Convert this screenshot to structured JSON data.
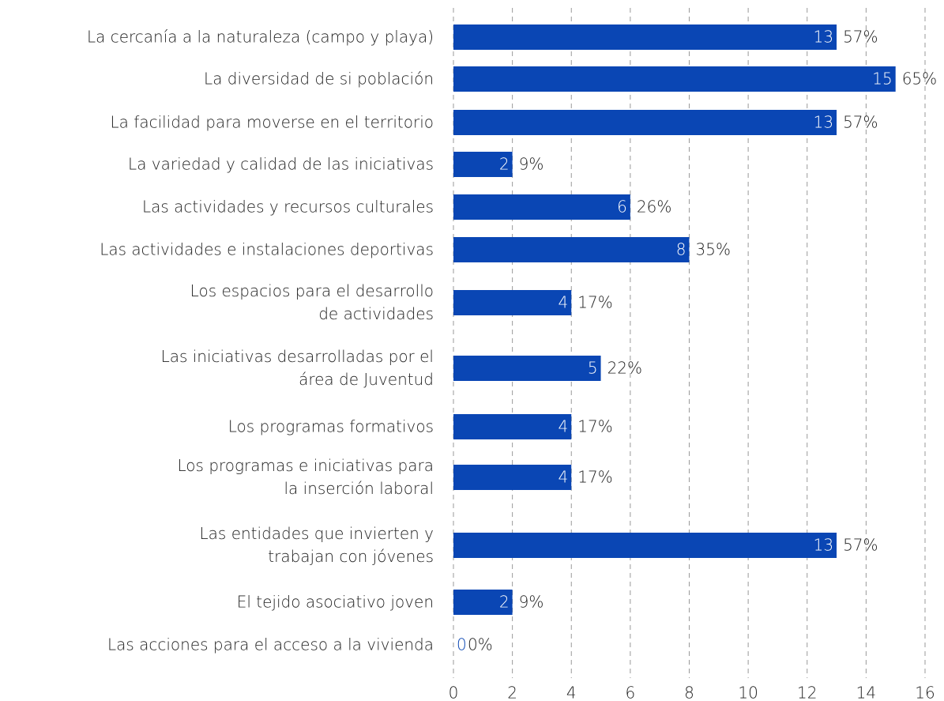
{
  "chart_data": {
    "type": "bar",
    "orientation": "horizontal",
    "color": "#0a46b4",
    "categories": [
      "La cercanía a la naturaleza (campo y playa)",
      "La diversidad de si población",
      "La facilidad para moverse en el territorio",
      "La variedad y calidad de las iniciativas",
      "Las actividades y recursos culturales",
      "Las actividades e instalaciones deportivas",
      "Los espacios para el desarrollo\nde actividades",
      "Las iniciativas desarrolladas por el\nárea de Juventud",
      "Los programas formativos",
      "Los programas e iniciativas para\nla inserción laboral",
      "Las entidades que invierten y\ntrabajan con jóvenes",
      "El tejido asociativo joven",
      "Las acciones para el acceso a la vivienda"
    ],
    "values": [
      13,
      15,
      13,
      2,
      6,
      8,
      4,
      5,
      4,
      4,
      13,
      2,
      0
    ],
    "percent_labels": [
      "57%",
      "65%",
      "57%",
      "9%",
      "26%",
      "35%",
      "17%",
      "22%",
      "17%",
      "17%",
      "57%",
      "9%",
      "0%"
    ],
    "xlim": [
      0,
      16
    ],
    "xticks": [
      0,
      2,
      4,
      6,
      8,
      10,
      12,
      14,
      16
    ],
    "grid": true
  }
}
